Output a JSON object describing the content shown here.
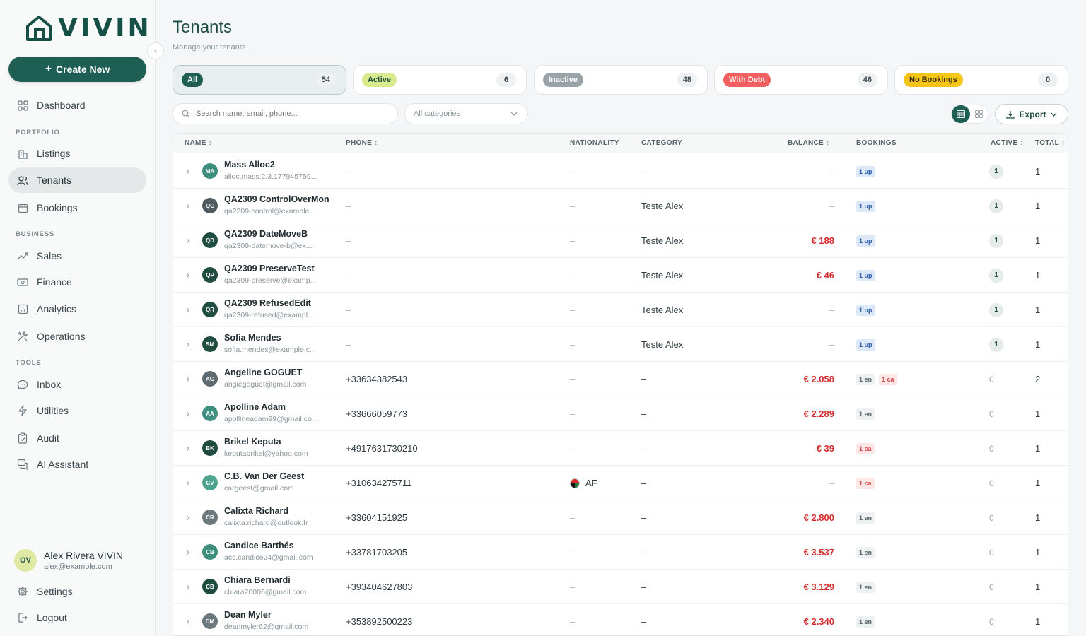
{
  "app": {
    "logo_text": "VIVIN"
  },
  "sidebar": {
    "create_label": "Create New",
    "dashboard": "Dashboard",
    "section_portfolio": "PORTFOLIO",
    "listings": "Listings",
    "tenants": "Tenants",
    "bookings": "Bookings",
    "section_business": "BUSINESS",
    "sales": "Sales",
    "finance": "Finance",
    "analytics": "Analytics",
    "operations": "Operations",
    "section_tools": "TOOLS",
    "inbox": "Inbox",
    "utilities": "Utilities",
    "audit": "Audit",
    "ai_assistant": "AI Assistant",
    "user": {
      "initials": "OV",
      "name": "Alex Rivera VIVIN",
      "email": "alex@example.com"
    },
    "settings": "Settings",
    "logout": "Logout"
  },
  "header": {
    "title": "Tenants",
    "subtitle": "Manage your tenants"
  },
  "filters": [
    {
      "label": "All",
      "count": "54",
      "color": "#1f5e52",
      "text_color": "#ffffff"
    },
    {
      "label": "Active",
      "count": "6",
      "color": "#d8eb8e",
      "text_color": "#1f4d3f"
    },
    {
      "label": "Inactive",
      "count": "48",
      "color": "#9aa4a8",
      "text_color": "#ffffff"
    },
    {
      "label": "With Debt",
      "count": "46",
      "color": "#f25f5f",
      "text_color": "#ffffff"
    },
    {
      "label": "No Bookings",
      "count": "0",
      "color": "#f5c518",
      "text_color": "#3a2c00"
    }
  ],
  "search": {
    "placeholder": "Search name, email, phone..."
  },
  "category_select": {
    "value": "All categories"
  },
  "export_label": "Export",
  "table": {
    "columns": {
      "name": "NAME",
      "phone": "PHONE",
      "nationality": "NATIONALITY",
      "category": "CATEGORY",
      "balance": "BALANCE",
      "bookings": "BOOKINGS",
      "active": "ACTIVE",
      "total": "TOTAL"
    },
    "rows": [
      {
        "initials": "MA",
        "avatar_color": "#3f8f7f",
        "name": "Mass Alloc2",
        "email": "alloc.mass.2.3.177945759...",
        "phone": "–",
        "nationality": "–",
        "category": "–",
        "balance": "–",
        "tags": [
          "1 up"
        ],
        "active": "1",
        "total": "1"
      },
      {
        "initials": "QC",
        "avatar_color": "#4d5a60",
        "name": "QA2309 ControlOverMon",
        "email": "qa2309-control@example...",
        "phone": "–",
        "nationality": "–",
        "category": "Teste Alex",
        "balance": "–",
        "tags": [
          "1 up"
        ],
        "active": "1",
        "total": "1"
      },
      {
        "initials": "QD",
        "avatar_color": "#1f4d3f",
        "name": "QA2309 DateMoveB",
        "email": "qa2309-datemove-b@ex...",
        "phone": "–",
        "nationality": "–",
        "category": "Teste Alex",
        "balance": "€ 188",
        "tags": [
          "1 up"
        ],
        "active": "1",
        "total": "1"
      },
      {
        "initials": "QP",
        "avatar_color": "#1f4d3f",
        "name": "QA2309 PreserveTest",
        "email": "qa2309-preserve@examp...",
        "phone": "–",
        "nationality": "–",
        "category": "Teste Alex",
        "balance": "€ 46",
        "tags": [
          "1 up"
        ],
        "active": "1",
        "total": "1"
      },
      {
        "initials": "QR",
        "avatar_color": "#1f4d3f",
        "name": "QA2309 RefusedEdit",
        "email": "qa2309-refused@exampl...",
        "phone": "–",
        "nationality": "–",
        "category": "Teste Alex",
        "balance": "–",
        "tags": [
          "1 up"
        ],
        "active": "1",
        "total": "1"
      },
      {
        "initials": "SM",
        "avatar_color": "#1f4d3f",
        "name": "Sofia Mendes",
        "email": "sofia.mendes@example.c...",
        "phone": "–",
        "nationality": "–",
        "category": "Teste Alex",
        "balance": "–",
        "tags": [
          "1 up"
        ],
        "active": "1",
        "total": "1"
      },
      {
        "initials": "AG",
        "avatar_color": "#5d6a70",
        "name": "Angeline GOGUET",
        "email": "angiegoguet@gmail.com",
        "phone": "+33634382543",
        "nationality": "–",
        "category": "–",
        "balance": "€ 2.058",
        "tags": [
          "1 en",
          "1 ca"
        ],
        "active": "0",
        "total": "2"
      },
      {
        "initials": "AA",
        "avatar_color": "#3f8f7f",
        "name": "Apolline Adam",
        "email": "apollineadam99@gmail.co...",
        "phone": "+33666059773",
        "nationality": "–",
        "category": "–",
        "balance": "€ 2.289",
        "tags": [
          "1 en"
        ],
        "active": "0",
        "total": "1"
      },
      {
        "initials": "BK",
        "avatar_color": "#1f4d3f",
        "name": "Brikel Keputa",
        "email": "keputabrikel@yahoo.com",
        "phone": "+4917631730210",
        "nationality": "–",
        "category": "–",
        "balance": "€ 39",
        "tags": [
          "1 ca"
        ],
        "active": "0",
        "total": "1"
      },
      {
        "initials": "CV",
        "avatar_color": "#4fa48f",
        "name": "C.B. Van Der Geest",
        "email": "cargeest@gmail.com",
        "phone": "+310634275711",
        "nationality": "AF",
        "category": "–",
        "balance": "–",
        "tags": [
          "1 ca"
        ],
        "active": "0",
        "total": "1"
      },
      {
        "initials": "CR",
        "avatar_color": "#6b787d",
        "name": "Calixta Richard",
        "email": "calixta.richard@outlook.fr",
        "phone": "+33604151925",
        "nationality": "–",
        "category": "–",
        "balance": "€ 2.800",
        "tags": [
          "1 en"
        ],
        "active": "0",
        "total": "1"
      },
      {
        "initials": "CB",
        "avatar_color": "#3f8f7f",
        "name": "Candice Barthés",
        "email": "acc.candice24@gmail.com",
        "phone": "+33781703205",
        "nationality": "–",
        "category": "–",
        "balance": "€ 3.537",
        "tags": [
          "1 en"
        ],
        "active": "0",
        "total": "1"
      },
      {
        "initials": "CB",
        "avatar_color": "#1f4d3f",
        "name": "Chiara Bernardi",
        "email": "chiara20006@gmail.com",
        "phone": "+393404627803",
        "nationality": "–",
        "category": "–",
        "balance": "€ 3.129",
        "tags": [
          "1 en"
        ],
        "active": "0",
        "total": "1"
      },
      {
        "initials": "DM",
        "avatar_color": "#6b787d",
        "name": "Dean Myler",
        "email": "deanmyler62@gmail.com",
        "phone": "+353892500223",
        "nationality": "–",
        "category": "–",
        "balance": "€ 2.340",
        "tags": [
          "1 en"
        ],
        "active": "0",
        "total": "1"
      }
    ]
  }
}
